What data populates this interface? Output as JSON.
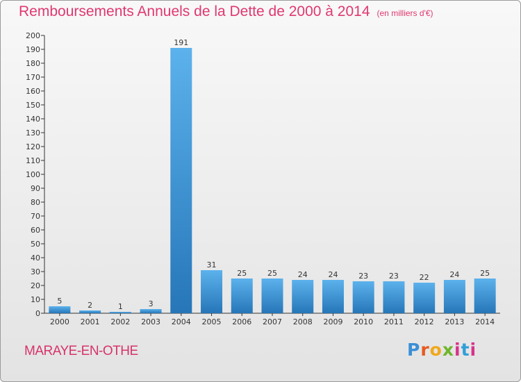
{
  "title": "Remboursements Annuels de la Dette de 2000 à 2014",
  "subtitle": "(en milliers d'€)",
  "commune": "MARAYE-EN-OTHE",
  "logo": [
    "P",
    "r",
    "o",
    "x",
    "i",
    "t",
    "i"
  ],
  "colors": {
    "accent": "#e0386e",
    "bar_light": "#5aaee8",
    "bar_dark": "#2a7cc0"
  },
  "chart_data": {
    "type": "bar",
    "categories": [
      "2000",
      "2001",
      "2002",
      "2003",
      "2004",
      "2005",
      "2006",
      "2007",
      "2008",
      "2009",
      "2010",
      "2011",
      "2012",
      "2013",
      "2014"
    ],
    "values": [
      5,
      2,
      1,
      3,
      191,
      31,
      25,
      25,
      24,
      24,
      23,
      23,
      22,
      24,
      25
    ],
    "ylim": [
      0,
      200
    ],
    "yticks": [
      0,
      10,
      20,
      30,
      40,
      50,
      60,
      70,
      80,
      90,
      100,
      110,
      120,
      130,
      140,
      150,
      160,
      170,
      180,
      190,
      200
    ],
    "grid": false,
    "legend": "none"
  }
}
